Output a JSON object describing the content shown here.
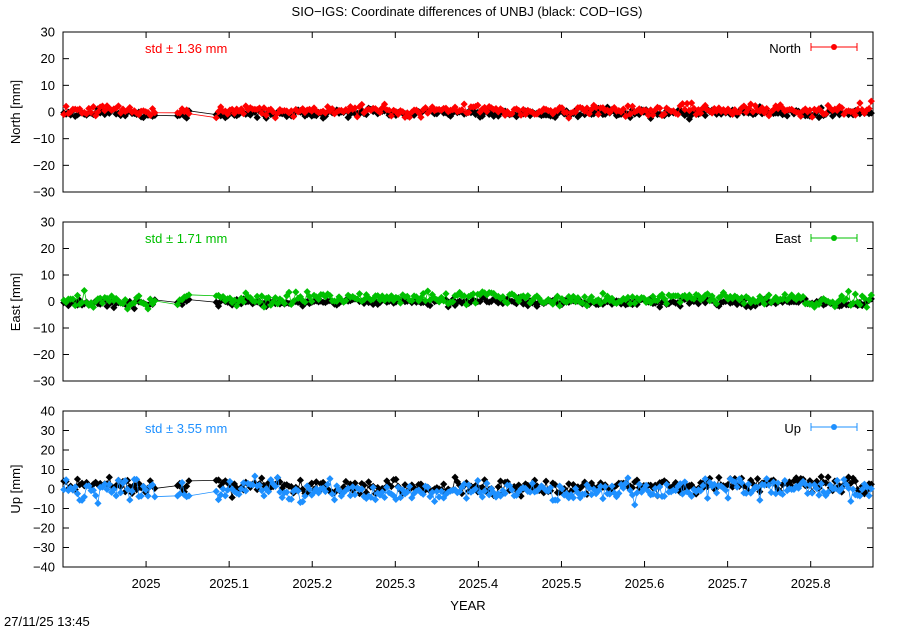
{
  "title": "SIO−IGS: Coordinate differences of UNBJ (black: COD−IGS)",
  "timestamp": "27/11/25 13:45",
  "chart_data": {
    "type": "scatter",
    "xlabel": "YEAR",
    "xlim": [
      2024.9,
      2025.875
    ],
    "xticks": [
      2025,
      2025.1,
      2025.2,
      2025.3,
      2025.4,
      2025.5,
      2025.6,
      2025.7,
      2025.8
    ],
    "xtick_labels": [
      "2025",
      "2025.1",
      "2025.2",
      "2025.3",
      "2025.4",
      "2025.5",
      "2025.6",
      "2025.7",
      "2025.8"
    ],
    "grid": false,
    "legend_position": "top-right",
    "panels": [
      {
        "id": "north",
        "ylabel": "North [mm]",
        "ylim": [
          -30,
          30
        ],
        "yticks": [
          30,
          20,
          10,
          0,
          -10,
          -20,
          -30
        ],
        "ytick_labels": [
          "30",
          "20",
          "10",
          "0",
          "−10",
          "−20",
          "−30"
        ],
        "std_text": "std ± 1.36 mm",
        "legend_label": "North",
        "color": "#ff0000",
        "reference_color": "#000000",
        "seed": 11,
        "series": [
          {
            "name": "North",
            "std": 1.36
          },
          {
            "std": 1.0
          }
        ]
      },
      {
        "id": "east",
        "ylabel": "East [mm]",
        "ylim": [
          -30,
          30
        ],
        "yticks": [
          30,
          20,
          10,
          0,
          -10,
          -20,
          -30
        ],
        "ytick_labels": [
          "30",
          "20",
          "10",
          "0",
          "−10",
          "−20",
          "−30"
        ],
        "std_text": "std ± 1.71 mm",
        "legend_label": "East",
        "color": "#00c000",
        "reference_color": "#000000",
        "seed": 23,
        "series": [
          {
            "name": "East",
            "std": 1.71
          },
          {
            "std": 0.9
          }
        ]
      },
      {
        "id": "up",
        "ylabel": "Up [mm]",
        "ylim": [
          -40,
          40
        ],
        "yticks": [
          40,
          30,
          20,
          10,
          0,
          -10,
          -20,
          -30,
          -40
        ],
        "ytick_labels": [
          "40",
          "30",
          "20",
          "10",
          "0",
          "−10",
          "−20",
          "−30",
          "−40"
        ],
        "std_text": "std ± 3.55 mm",
        "legend_label": "Up",
        "color": "#1e90ff",
        "reference_color": "#000000",
        "seed": 37,
        "series": [
          {
            "name": "Up",
            "std": 3.55
          },
          {
            "std": 2.6
          }
        ]
      }
    ],
    "data_gaps": [
      [
        2025.012,
        2025.036
      ],
      [
        2025.053,
        2025.082
      ]
    ]
  }
}
